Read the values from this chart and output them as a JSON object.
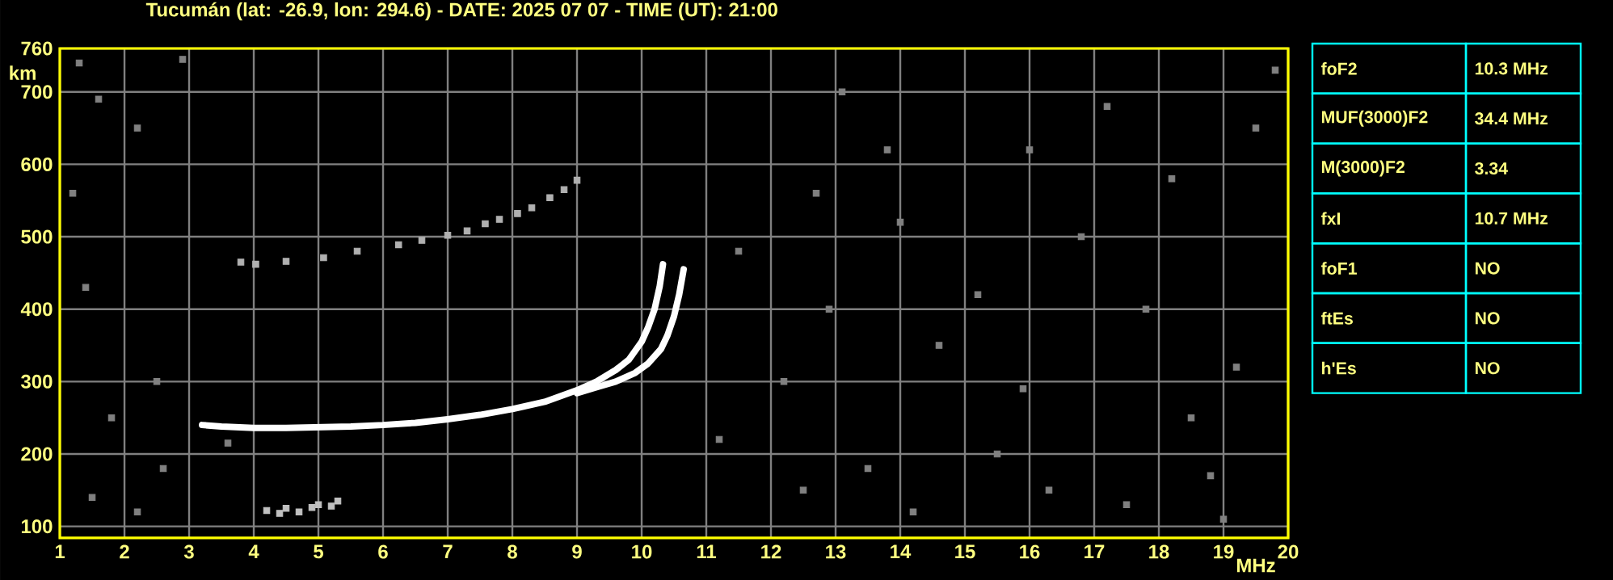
{
  "chart_data": {
    "type": "scatter",
    "title": "Tucumán (lat: -26.9, lon: 294.6) - DATE: 2025 07 07 - TIME (UT): 21:00",
    "xlabel": "MHz",
    "ylabel": "km",
    "xlim": [
      1,
      20
    ],
    "ylim": [
      84,
      760
    ],
    "xticks": [
      1,
      2,
      3,
      4,
      5,
      6,
      7,
      8,
      9,
      10,
      11,
      12,
      13,
      14,
      15,
      16,
      17,
      18,
      19,
      20
    ],
    "yticks": [
      100,
      200,
      300,
      400,
      500,
      600,
      700,
      760
    ],
    "grid": true,
    "series": [
      {
        "type": "line",
        "color": "#ffffff",
        "x": [
          3.2,
          3.5,
          4.0,
          4.5,
          5.0,
          5.5,
          6.0,
          6.5,
          7.0,
          7.5,
          8.0,
          8.5,
          9.0,
          9.3,
          9.6,
          9.8,
          10.0,
          10.1,
          10.2,
          10.28,
          10.33
        ],
        "values": [
          240,
          238,
          236,
          236,
          237,
          238,
          240,
          243,
          248,
          254,
          262,
          272,
          288,
          300,
          316,
          330,
          355,
          375,
          400,
          432,
          462
        ]
      },
      {
        "type": "line",
        "color": "#ffffff",
        "x": [
          9.0,
          9.3,
          9.6,
          9.9,
          10.1,
          10.3,
          10.4,
          10.5,
          10.58,
          10.65
        ],
        "values": [
          284,
          292,
          300,
          312,
          325,
          345,
          364,
          390,
          420,
          455
        ]
      },
      {
        "marker": "square",
        "color": "#b0b0b0",
        "x": [
          3.8,
          4.03,
          4.5,
          5.08,
          5.6,
          6.24,
          6.6,
          7.0,
          7.3,
          7.58,
          7.8,
          8.08,
          8.3,
          8.58,
          8.8,
          9.0
        ],
        "values": [
          465,
          462,
          466,
          471,
          480,
          489,
          495,
          502,
          508,
          518,
          524,
          532,
          540,
          554,
          565,
          578
        ]
      },
      {
        "marker": "square",
        "color": "#c0c0c0",
        "x": [
          4.2,
          4.4,
          4.5,
          4.7,
          4.9,
          5.0,
          5.2,
          5.3
        ],
        "values": [
          122,
          118,
          125,
          120,
          126,
          130,
          128,
          135
        ]
      },
      {
        "marker": "square",
        "color": "#808080",
        "x": [
          1.3,
          1.6,
          2.2,
          1.2,
          2.9,
          1.4,
          2.5,
          1.8,
          2.6,
          3.6,
          1.5,
          2.2,
          12.5,
          13.5,
          14.2,
          15.5,
          16.3,
          17.5,
          18.5,
          19.2,
          11.5,
          12.7,
          13.8,
          15.2,
          16.8,
          17.2,
          18.2,
          19.5,
          19.8,
          14.6,
          12.2,
          13.1,
          16.0,
          17.8,
          11.2,
          19.0,
          18.8,
          15.9,
          12.9,
          14.0
        ],
        "values": [
          740,
          690,
          650,
          560,
          745,
          430,
          300,
          250,
          180,
          215,
          140,
          120,
          150,
          180,
          120,
          200,
          150,
          130,
          250,
          320,
          480,
          560,
          620,
          420,
          500,
          680,
          580,
          650,
          730,
          350,
          300,
          700,
          620,
          400,
          220,
          110,
          170,
          290,
          400,
          520
        ]
      }
    ],
    "annotations": [
      "foF2",
      "10.3 MHz",
      "MUF(3000)F2",
      "34.4 MHz",
      "M(3000)F2",
      "3.34",
      "fxI",
      "10.7 MHz",
      "foF1",
      "NO",
      "ftEs",
      "NO",
      "h'Es",
      "NO"
    ]
  }
}
